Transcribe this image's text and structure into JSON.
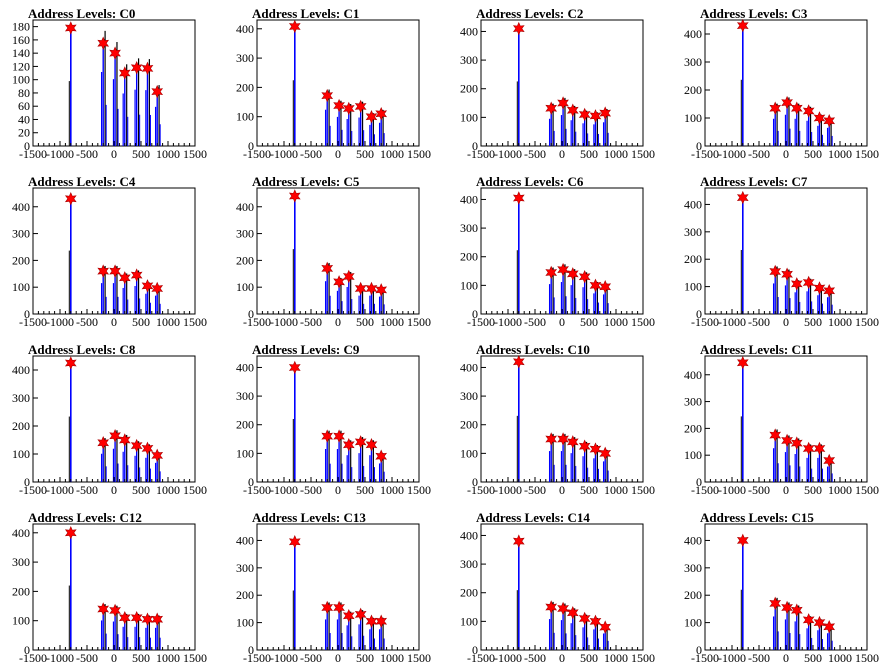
{
  "colors": {
    "histogram": "#0000ff",
    "histogram_dark": "#000000",
    "marker": "#ff0000",
    "axis": "#000000",
    "background": "#ffffff"
  },
  "chart_data": [
    {
      "type": "bar",
      "title": "Address Levels: C0",
      "xlim": [
        -1500,
        1500
      ],
      "ylim": [
        0,
        190
      ],
      "yticks": [
        0,
        20,
        40,
        60,
        80,
        100,
        120,
        140,
        160,
        180
      ],
      "xticks": [
        -1500,
        -1000,
        -500,
        0,
        500,
        1000,
        1500
      ],
      "xtick_labels": [
        "-1500",
        "-1000",
        "-500",
        "0",
        "500",
        "1000",
        "1500"
      ],
      "peaks": [
        {
          "x": -800,
          "y": 178
        },
        {
          "x": -200,
          "y": 155
        },
        {
          "x": 20,
          "y": 140
        },
        {
          "x": 200,
          "y": 110
        },
        {
          "x": 420,
          "y": 118
        },
        {
          "x": 620,
          "y": 117
        },
        {
          "x": 800,
          "y": 82
        }
      ]
    },
    {
      "type": "bar",
      "title": "Address Levels: C1",
      "xlim": [
        -1500,
        1500
      ],
      "ylim": [
        0,
        430
      ],
      "yticks": [
        0,
        100,
        200,
        300,
        400
      ],
      "xticks": [
        -1500,
        -1000,
        -500,
        0,
        500,
        1000,
        1500
      ],
      "xtick_labels": [
        "-1500",
        "-1000",
        "-500",
        "0",
        "500",
        "1000",
        "1500"
      ],
      "peaks": [
        {
          "x": -800,
          "y": 408
        },
        {
          "x": -200,
          "y": 172
        },
        {
          "x": 20,
          "y": 138
        },
        {
          "x": 200,
          "y": 128
        },
        {
          "x": 420,
          "y": 135
        },
        {
          "x": 620,
          "y": 100
        },
        {
          "x": 800,
          "y": 110
        }
      ]
    },
    {
      "type": "bar",
      "title": "Address Levels: C2",
      "xlim": [
        -1500,
        1500
      ],
      "ylim": [
        0,
        440
      ],
      "yticks": [
        0,
        100,
        200,
        300,
        400
      ],
      "xticks": [
        -1500,
        -1000,
        -500,
        0,
        500,
        1000,
        1500
      ],
      "xtick_labels": [
        "-1500",
        "-1000",
        "-500",
        "0",
        "500",
        "1000",
        "1500"
      ],
      "peaks": [
        {
          "x": -800,
          "y": 410
        },
        {
          "x": -200,
          "y": 132
        },
        {
          "x": 20,
          "y": 150
        },
        {
          "x": 200,
          "y": 125
        },
        {
          "x": 420,
          "y": 110
        },
        {
          "x": 620,
          "y": 105
        },
        {
          "x": 800,
          "y": 115
        }
      ]
    },
    {
      "type": "bar",
      "title": "Address Levels: C3",
      "xlim": [
        -1500,
        1500
      ],
      "ylim": [
        0,
        450
      ],
      "yticks": [
        0,
        100,
        200,
        300,
        400
      ],
      "xticks": [
        -1500,
        -1000,
        -500,
        0,
        500,
        1000,
        1500
      ],
      "xtick_labels": [
        "-1500",
        "-1000",
        "-500",
        "0",
        "500",
        "1000",
        "1500"
      ],
      "peaks": [
        {
          "x": -800,
          "y": 430
        },
        {
          "x": -200,
          "y": 135
        },
        {
          "x": 20,
          "y": 155
        },
        {
          "x": 200,
          "y": 135
        },
        {
          "x": 420,
          "y": 125
        },
        {
          "x": 620,
          "y": 100
        },
        {
          "x": 800,
          "y": 90
        }
      ]
    },
    {
      "type": "bar",
      "title": "Address Levels: C4",
      "xlim": [
        -1500,
        1500
      ],
      "ylim": [
        0,
        470
      ],
      "yticks": [
        0,
        100,
        200,
        300,
        400
      ],
      "xticks": [
        -1500,
        -1000,
        -500,
        0,
        500,
        1000,
        1500
      ],
      "xtick_labels": [
        "-1500",
        "-1000",
        "-500",
        "0",
        "500",
        "1000",
        "1500"
      ],
      "peaks": [
        {
          "x": -800,
          "y": 430
        },
        {
          "x": -200,
          "y": 160
        },
        {
          "x": 20,
          "y": 160
        },
        {
          "x": 200,
          "y": 135
        },
        {
          "x": 420,
          "y": 145
        },
        {
          "x": 620,
          "y": 105
        },
        {
          "x": 800,
          "y": 95
        }
      ]
    },
    {
      "type": "bar",
      "title": "Address Levels: C5",
      "xlim": [
        -1500,
        1500
      ],
      "ylim": [
        0,
        470
      ],
      "yticks": [
        0,
        100,
        200,
        300,
        400
      ],
      "xticks": [
        -1500,
        -1000,
        -500,
        0,
        500,
        1000,
        1500
      ],
      "xtick_labels": [
        "-1500",
        "-1000",
        "-500",
        "0",
        "500",
        "1000",
        "1500"
      ],
      "peaks": [
        {
          "x": -800,
          "y": 440
        },
        {
          "x": -200,
          "y": 170
        },
        {
          "x": 20,
          "y": 120
        },
        {
          "x": 200,
          "y": 140
        },
        {
          "x": 420,
          "y": 95
        },
        {
          "x": 620,
          "y": 95
        },
        {
          "x": 800,
          "y": 90
        }
      ]
    },
    {
      "type": "bar",
      "title": "Address Levels: C6",
      "xlim": [
        -1500,
        1500
      ],
      "ylim": [
        0,
        440
      ],
      "yticks": [
        0,
        100,
        200,
        300,
        400
      ],
      "xticks": [
        -1500,
        -1000,
        -500,
        0,
        500,
        1000,
        1500
      ],
      "xtick_labels": [
        "-1500",
        "-1000",
        "-500",
        "0",
        "500",
        "1000",
        "1500"
      ],
      "peaks": [
        {
          "x": -800,
          "y": 405
        },
        {
          "x": -200,
          "y": 145
        },
        {
          "x": 20,
          "y": 155
        },
        {
          "x": 200,
          "y": 140
        },
        {
          "x": 420,
          "y": 130
        },
        {
          "x": 620,
          "y": 100
        },
        {
          "x": 800,
          "y": 95
        }
      ]
    },
    {
      "type": "bar",
      "title": "Address Levels: C7",
      "xlim": [
        -1500,
        1500
      ],
      "ylim": [
        0,
        460
      ],
      "yticks": [
        0,
        100,
        200,
        300,
        400
      ],
      "xticks": [
        -1500,
        -1000,
        -500,
        0,
        500,
        1000,
        1500
      ],
      "xtick_labels": [
        "-1500",
        "-1000",
        "-500",
        "0",
        "500",
        "1000",
        "1500"
      ],
      "peaks": [
        {
          "x": -800,
          "y": 425
        },
        {
          "x": -200,
          "y": 155
        },
        {
          "x": 20,
          "y": 145
        },
        {
          "x": 200,
          "y": 110
        },
        {
          "x": 420,
          "y": 115
        },
        {
          "x": 620,
          "y": 95
        },
        {
          "x": 800,
          "y": 85
        }
      ]
    },
    {
      "type": "bar",
      "title": "Address Levels: C8",
      "xlim": [
        -1500,
        1500
      ],
      "ylim": [
        0,
        450
      ],
      "yticks": [
        0,
        100,
        200,
        300,
        400
      ],
      "xticks": [
        -1500,
        -1000,
        -500,
        0,
        500,
        1000,
        1500
      ],
      "xtick_labels": [
        "-1500",
        "-1000",
        "-500",
        "0",
        "500",
        "1000",
        "1500"
      ],
      "peaks": [
        {
          "x": -800,
          "y": 425
        },
        {
          "x": -200,
          "y": 140
        },
        {
          "x": 20,
          "y": 165
        },
        {
          "x": 200,
          "y": 150
        },
        {
          "x": 420,
          "y": 130
        },
        {
          "x": 620,
          "y": 120
        },
        {
          "x": 800,
          "y": 95
        }
      ]
    },
    {
      "type": "bar",
      "title": "Address Levels: C9",
      "xlim": [
        -1500,
        1500
      ],
      "ylim": [
        0,
        440
      ],
      "yticks": [
        0,
        100,
        200,
        300,
        400
      ],
      "xticks": [
        -1500,
        -1000,
        -500,
        0,
        500,
        1000,
        1500
      ],
      "xtick_labels": [
        "-1500",
        "-1000",
        "-500",
        "0",
        "500",
        "1000",
        "1500"
      ],
      "peaks": [
        {
          "x": -800,
          "y": 400
        },
        {
          "x": -200,
          "y": 160
        },
        {
          "x": 20,
          "y": 160
        },
        {
          "x": 200,
          "y": 130
        },
        {
          "x": 420,
          "y": 140
        },
        {
          "x": 620,
          "y": 130
        },
        {
          "x": 800,
          "y": 90
        }
      ]
    },
    {
      "type": "bar",
      "title": "Address Levels: C10",
      "xlim": [
        -1500,
        1500
      ],
      "ylim": [
        0,
        440
      ],
      "yticks": [
        0,
        100,
        200,
        300,
        400
      ],
      "xticks": [
        -1500,
        -1000,
        -500,
        0,
        500,
        1000,
        1500
      ],
      "xtick_labels": [
        "-1500",
        "-1000",
        "-500",
        "0",
        "500",
        "1000",
        "1500"
      ],
      "peaks": [
        {
          "x": -800,
          "y": 420
        },
        {
          "x": -200,
          "y": 150
        },
        {
          "x": 20,
          "y": 150
        },
        {
          "x": 200,
          "y": 140
        },
        {
          "x": 420,
          "y": 125
        },
        {
          "x": 620,
          "y": 115
        },
        {
          "x": 800,
          "y": 100
        }
      ]
    },
    {
      "type": "bar",
      "title": "Address Levels: C11",
      "xlim": [
        -1500,
        1500
      ],
      "ylim": [
        0,
        470
      ],
      "yticks": [
        0,
        100,
        200,
        300,
        400
      ],
      "xticks": [
        -1500,
        -1000,
        -500,
        0,
        500,
        1000,
        1500
      ],
      "xtick_labels": [
        "-1500",
        "-1000",
        "-500",
        "0",
        "500",
        "1000",
        "1500"
      ],
      "peaks": [
        {
          "x": -800,
          "y": 445
        },
        {
          "x": -200,
          "y": 175
        },
        {
          "x": 20,
          "y": 155
        },
        {
          "x": 200,
          "y": 145
        },
        {
          "x": 420,
          "y": 125
        },
        {
          "x": 620,
          "y": 125
        },
        {
          "x": 800,
          "y": 80
        }
      ]
    },
    {
      "type": "bar",
      "title": "Address Levels: C12",
      "xlim": [
        -1500,
        1500
      ],
      "ylim": [
        0,
        430
      ],
      "yticks": [
        0,
        100,
        200,
        300,
        400
      ],
      "xticks": [
        -1500,
        -1000,
        -500,
        0,
        500,
        1000,
        1500
      ],
      "xtick_labels": [
        "-1500",
        "-1000",
        "-500",
        "0",
        "500",
        "1000",
        "1500"
      ],
      "peaks": [
        {
          "x": -800,
          "y": 400
        },
        {
          "x": -200,
          "y": 140
        },
        {
          "x": 20,
          "y": 135
        },
        {
          "x": 200,
          "y": 110
        },
        {
          "x": 420,
          "y": 110
        },
        {
          "x": 620,
          "y": 105
        },
        {
          "x": 800,
          "y": 105
        }
      ]
    },
    {
      "type": "bar",
      "title": "Address Levels: C13",
      "xlim": [
        -1500,
        1500
      ],
      "ylim": [
        0,
        460
      ],
      "yticks": [
        0,
        100,
        200,
        300,
        400
      ],
      "xticks": [
        -1500,
        -1000,
        -500,
        0,
        500,
        1000,
        1500
      ],
      "xtick_labels": [
        "-1500",
        "-1000",
        "-500",
        "0",
        "500",
        "1000",
        "1500"
      ],
      "peaks": [
        {
          "x": -800,
          "y": 395
        },
        {
          "x": -200,
          "y": 155
        },
        {
          "x": 20,
          "y": 155
        },
        {
          "x": 200,
          "y": 125
        },
        {
          "x": 420,
          "y": 130
        },
        {
          "x": 620,
          "y": 105
        },
        {
          "x": 800,
          "y": 105
        }
      ]
    },
    {
      "type": "bar",
      "title": "Address Levels: C14",
      "xlim": [
        -1500,
        1500
      ],
      "ylim": [
        0,
        440
      ],
      "yticks": [
        0,
        100,
        200,
        300,
        400
      ],
      "xticks": [
        -1500,
        -1000,
        -500,
        0,
        500,
        1000,
        1500
      ],
      "xtick_labels": [
        "-1500",
        "-1000",
        "-500",
        "0",
        "500",
        "1000",
        "1500"
      ],
      "peaks": [
        {
          "x": -800,
          "y": 380
        },
        {
          "x": -200,
          "y": 150
        },
        {
          "x": 20,
          "y": 145
        },
        {
          "x": 200,
          "y": 130
        },
        {
          "x": 420,
          "y": 110
        },
        {
          "x": 620,
          "y": 100
        },
        {
          "x": 800,
          "y": 80
        }
      ]
    },
    {
      "type": "bar",
      "title": "Address Levels: C15",
      "xlim": [
        -1500,
        1500
      ],
      "ylim": [
        0,
        460
      ],
      "yticks": [
        0,
        100,
        200,
        300,
        400
      ],
      "xticks": [
        -1500,
        -1000,
        -500,
        0,
        500,
        1000,
        1500
      ],
      "xtick_labels": [
        "-1500",
        "-1000",
        "-500",
        "0",
        "500",
        "1000",
        "1500"
      ],
      "peaks": [
        {
          "x": -800,
          "y": 400
        },
        {
          "x": -200,
          "y": 170
        },
        {
          "x": 20,
          "y": 155
        },
        {
          "x": 200,
          "y": 145
        },
        {
          "x": 420,
          "y": 110
        },
        {
          "x": 620,
          "y": 100
        },
        {
          "x": 800,
          "y": 85
        }
      ]
    }
  ]
}
